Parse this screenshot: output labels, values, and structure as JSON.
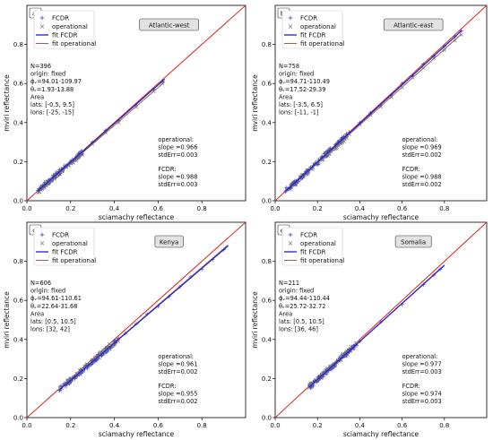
{
  "chart_data": [
    {
      "type": "scatter",
      "panel_label": "a)",
      "region": "Atlantic-west",
      "xlabel": "sciamachy reflectance",
      "ylabel": "mviri reflectance",
      "xlim": [
        0,
        1
      ],
      "ylim": [
        0,
        1
      ],
      "xticks": [
        "0.0",
        "0.2",
        "0.4",
        "0.6",
        "0.8"
      ],
      "yticks": [
        "0.0",
        "0.2",
        "0.4",
        "0.6",
        "0.8"
      ],
      "legend": [
        "FCDR",
        "operational",
        "fit FCDR",
        "fit operational"
      ],
      "info": [
        "N=396",
        "origin: fixed",
        "ϕᵥ=94.01-109.97",
        "θᵥ=1.93-13.88",
        "Area",
        "lats: [-0.5, 9.5]",
        "lons: [-25, -15]"
      ],
      "stats_operational": [
        "operational:",
        "slope =0.966",
        "stdErr=0.003"
      ],
      "stats_fcdr": [
        "FCDR:",
        "slope =0.988",
        "stdErr=0.003"
      ],
      "x_range": [
        0.05,
        0.63
      ],
      "slope_fcdr": 0.988,
      "slope_operational": 0.966,
      "series": [
        {
          "name": "FCDR",
          "x": [
            0.06,
            0.08,
            0.1,
            0.12,
            0.14,
            0.16,
            0.18,
            0.2,
            0.24,
            0.3,
            0.36,
            0.42,
            0.5,
            0.58,
            0.62
          ],
          "y": [
            0.06,
            0.08,
            0.1,
            0.12,
            0.14,
            0.16,
            0.18,
            0.2,
            0.24,
            0.3,
            0.36,
            0.41,
            0.49,
            0.57,
            0.61
          ]
        },
        {
          "name": "operational",
          "x": [
            0.06,
            0.08,
            0.1,
            0.12,
            0.14,
            0.16,
            0.18,
            0.2,
            0.24,
            0.3,
            0.36,
            0.42,
            0.5,
            0.58,
            0.62
          ],
          "y": [
            0.06,
            0.08,
            0.1,
            0.12,
            0.14,
            0.15,
            0.17,
            0.19,
            0.23,
            0.29,
            0.35,
            0.4,
            0.48,
            0.56,
            0.6
          ]
        }
      ]
    },
    {
      "type": "scatter",
      "panel_label": "b)",
      "region": "Atlantic-east",
      "xlabel": "sciamachy reflectance",
      "ylabel": "mviri reflectance",
      "xlim": [
        0,
        1
      ],
      "ylim": [
        0,
        1
      ],
      "xticks": [
        "0.0",
        "0.2",
        "0.4",
        "0.6",
        "0.8"
      ],
      "yticks": [
        "0.0",
        "0.2",
        "0.4",
        "0.6",
        "0.8"
      ],
      "legend": [
        "FCDR",
        "operational",
        "fit FCDR",
        "fit operational"
      ],
      "info": [
        "N=758",
        "origin: fixed",
        "ϕᵥ=94.71-110.49",
        "θᵥ=17.52-29.39",
        "Area",
        "lats: [-3.5, 6.5]",
        "lons: [-11, -1]"
      ],
      "stats_operational": [
        "operational:",
        "slope =0.969",
        "stdErr=0.002"
      ],
      "stats_fcdr": [
        "FCDR:",
        "slope =0.988",
        "stdErr=0.002"
      ],
      "x_range": [
        0.05,
        0.88
      ],
      "slope_fcdr": 0.988,
      "slope_operational": 0.969,
      "series": [
        {
          "name": "FCDR",
          "x": [
            0.06,
            0.08,
            0.1,
            0.12,
            0.15,
            0.18,
            0.22,
            0.26,
            0.3,
            0.35,
            0.4,
            0.45,
            0.5,
            0.55,
            0.6,
            0.65,
            0.7,
            0.75,
            0.8,
            0.85,
            0.88
          ],
          "y": [
            0.06,
            0.08,
            0.1,
            0.12,
            0.15,
            0.18,
            0.22,
            0.26,
            0.3,
            0.35,
            0.4,
            0.45,
            0.49,
            0.54,
            0.6,
            0.64,
            0.7,
            0.74,
            0.79,
            0.84,
            0.87
          ]
        },
        {
          "name": "operational",
          "x": [
            0.06,
            0.08,
            0.1,
            0.12,
            0.15,
            0.18,
            0.22,
            0.26,
            0.3,
            0.35,
            0.4,
            0.45,
            0.5,
            0.55,
            0.6,
            0.65,
            0.7,
            0.75,
            0.8,
            0.85,
            0.88
          ],
          "y": [
            0.06,
            0.08,
            0.1,
            0.12,
            0.15,
            0.17,
            0.21,
            0.25,
            0.29,
            0.34,
            0.39,
            0.44,
            0.48,
            0.53,
            0.58,
            0.63,
            0.68,
            0.73,
            0.77,
            0.82,
            0.85
          ]
        }
      ]
    },
    {
      "type": "scatter",
      "panel_label": "c)",
      "region": "Kenya",
      "xlabel": "sciamachy reflectance",
      "ylabel": "mviri reflectance",
      "xlim": [
        0,
        1
      ],
      "ylim": [
        0,
        1
      ],
      "xticks": [
        "0.0",
        "0.2",
        "0.4",
        "0.6",
        "0.8"
      ],
      "yticks": [
        "0.0",
        "0.2",
        "0.4",
        "0.6",
        "0.8"
      ],
      "legend": [
        "FCDR",
        "operational",
        "fit FCDR",
        "fit operational"
      ],
      "info": [
        "N=606",
        "origin: fixed",
        "ϕᵥ=94.61-110.61",
        "θᵥ=22.64-31.68",
        "Area",
        "lats: [0.5, 10.5]",
        "lons: [32, 42]"
      ],
      "stats_operational": [
        "operational:",
        "slope =0.961",
        "stdErr=0.002"
      ],
      "stats_fcdr": [
        "FCDR:",
        "slope =0.955",
        "stdErr=0.002"
      ],
      "x_range": [
        0.15,
        0.92
      ],
      "slope_fcdr": 0.955,
      "slope_operational": 0.961,
      "series": [
        {
          "name": "FCDR",
          "x": [
            0.15,
            0.18,
            0.2,
            0.22,
            0.25,
            0.28,
            0.3,
            0.35,
            0.4,
            0.45,
            0.5,
            0.55,
            0.6,
            0.65,
            0.7,
            0.75,
            0.8,
            0.85,
            0.9
          ],
          "y": [
            0.14,
            0.17,
            0.19,
            0.21,
            0.24,
            0.27,
            0.29,
            0.33,
            0.38,
            0.43,
            0.48,
            0.53,
            0.57,
            0.62,
            0.67,
            0.72,
            0.76,
            0.81,
            0.86
          ]
        },
        {
          "name": "operational",
          "x": [
            0.15,
            0.18,
            0.2,
            0.22,
            0.25,
            0.28,
            0.3,
            0.35,
            0.4
          ],
          "y": [
            0.15,
            0.17,
            0.19,
            0.21,
            0.24,
            0.27,
            0.29,
            0.34,
            0.38
          ]
        }
      ]
    },
    {
      "type": "scatter",
      "panel_label": "d)",
      "region": "Somalia",
      "xlabel": "sciamachy reflectance",
      "ylabel": "mviri reflectance",
      "xlim": [
        0,
        1
      ],
      "ylim": [
        0,
        1
      ],
      "xticks": [
        "0.0",
        "0.2",
        "0.4",
        "0.6",
        "0.8"
      ],
      "yticks": [
        "0.0",
        "0.2",
        "0.4",
        "0.6",
        "0.8"
      ],
      "legend": [
        "FCDR",
        "operational",
        "fit FCDR",
        "fit operational"
      ],
      "info": [
        "N=211",
        "origin: fixed",
        "ϕᵥ=94.44-110.44",
        "θᵥ=25.72-32.72",
        "Area",
        "lats: [0.5, 10.5]",
        "lons: [36, 46]"
      ],
      "stats_operational": [
        "operational:",
        "slope =0.977",
        "stdErr=0.003"
      ],
      "stats_fcdr": [
        "FCDR:",
        "slope =0.974",
        "stdErr=0.003"
      ],
      "x_range": [
        0.16,
        0.8
      ],
      "slope_fcdr": 0.974,
      "slope_operational": 0.977,
      "series": [
        {
          "name": "FCDR",
          "x": [
            0.17,
            0.2,
            0.22,
            0.24,
            0.26,
            0.28,
            0.3,
            0.32,
            0.35,
            0.4,
            0.5,
            0.6,
            0.7,
            0.75,
            0.78
          ],
          "y": [
            0.16,
            0.19,
            0.21,
            0.23,
            0.25,
            0.27,
            0.29,
            0.31,
            0.34,
            0.39,
            0.49,
            0.58,
            0.68,
            0.73,
            0.76
          ]
        },
        {
          "name": "operational",
          "x": [
            0.17,
            0.2,
            0.22,
            0.24,
            0.26,
            0.28,
            0.3,
            0.32,
            0.35
          ],
          "y": [
            0.17,
            0.19,
            0.21,
            0.23,
            0.25,
            0.27,
            0.29,
            0.31,
            0.34
          ]
        }
      ]
    }
  ],
  "colors": {
    "fcdr": "#3b44c4",
    "operational": "#7d7d7d",
    "fit_fcdr": "#1f1fd0",
    "fit_operational": "#8b6a5a",
    "identity": "#e0201c"
  }
}
